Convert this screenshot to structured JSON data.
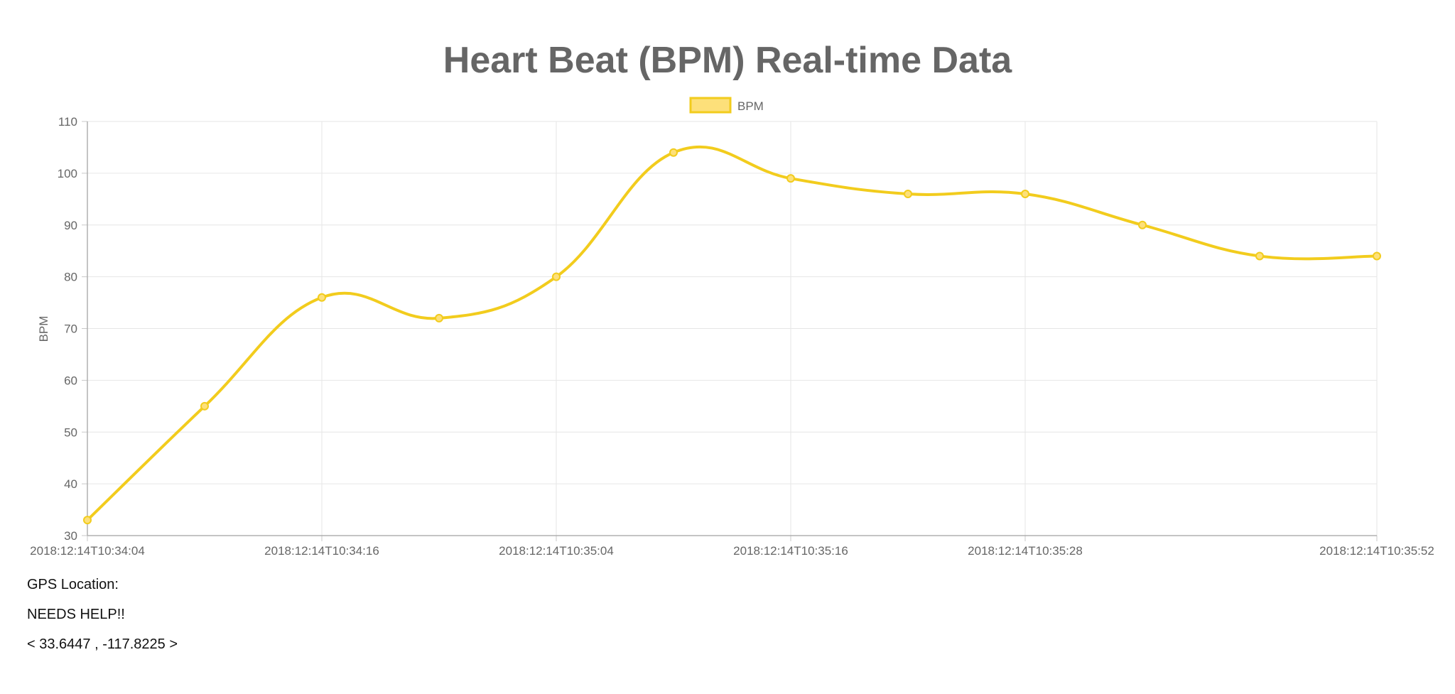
{
  "chart_data": {
    "type": "line",
    "title": "Heart Beat (BPM) Real-time Data",
    "ylabel": "BPM",
    "xlabel": "",
    "ylim": [
      30,
      110
    ],
    "y_ticks": [
      "110",
      "100",
      "90",
      "80",
      "70",
      "60",
      "50",
      "40",
      "30"
    ],
    "x_tick_labels": [
      "2018:12:14T10:34:04",
      "2018:12:14T10:34:16",
      "2018:12:14T10:35:04",
      "2018:12:14T10:35:16",
      "2018:12:14T10:35:28",
      "2018:12:14T10:35:52"
    ],
    "grid": true,
    "legend_position": "top-center",
    "series": [
      {
        "name": "BPM",
        "color": "#f2cc1d",
        "fill": "#fde07a",
        "values": [
          33,
          55,
          76,
          72,
          80,
          104,
          99,
          96,
          96,
          90,
          84,
          84
        ]
      }
    ]
  },
  "info": {
    "gps_label": "GPS Location:",
    "status": "NEEDS HELP!!",
    "coords": "< 33.6447 , -117.8225 >"
  }
}
